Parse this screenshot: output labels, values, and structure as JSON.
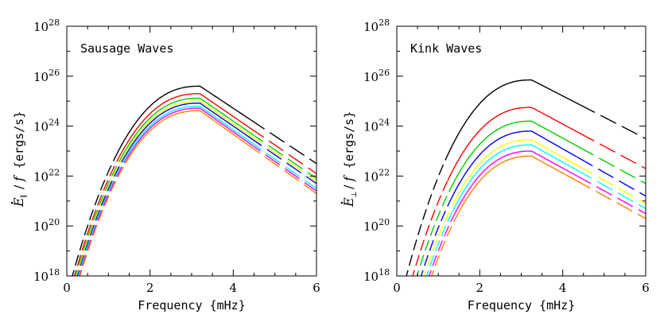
{
  "chart_data": [
    {
      "type": "line",
      "title": "Sausage Waves",
      "xlabel": "Frequency {mHz}",
      "ylabel": {
        "symbol": "E",
        "subscript": "∥",
        "slash": "/",
        "f": "f",
        "units": "{ergs/s}"
      },
      "xlim": [
        0,
        6
      ],
      "ylim_log10": [
        18,
        28
      ],
      "yscale": "log",
      "x_ticks": [
        {
          "v": 0,
          "label": "0"
        },
        {
          "v": 2,
          "label": "2"
        },
        {
          "v": 4,
          "label": "4"
        },
        {
          "v": 6,
          "label": "6"
        }
      ],
      "y_ticks": [
        {
          "e": 18,
          "base": "10",
          "exp": "18"
        },
        {
          "e": 20,
          "base": "10",
          "exp": "20"
        },
        {
          "e": 22,
          "base": "10",
          "exp": "22"
        },
        {
          "e": 24,
          "base": "10",
          "exp": "24"
        },
        {
          "e": 26,
          "base": "10",
          "exp": "26"
        },
        {
          "e": 28,
          "base": "10",
          "exp": "28"
        }
      ],
      "peak_x": 3.2,
      "solid_range_low": [
        1.2,
        4.4
      ],
      "series": [
        {
          "color": "#000000",
          "x_start": 0.1,
          "y_start_log10": 17.8,
          "y_peak_log10": 25.6,
          "y_end_log10": 22.5
        },
        {
          "color": "#ff0000",
          "x_start": 0.15,
          "y_start_log10": 17.8,
          "y_peak_log10": 25.3,
          "y_end_log10": 22.1
        },
        {
          "color": "#00cc00",
          "x_start": 0.18,
          "y_start_log10": 17.8,
          "y_peak_log10": 25.12,
          "y_end_log10": 21.9
        },
        {
          "color": "#ffff00",
          "x_start": 0.2,
          "y_start_log10": 17.8,
          "y_peak_log10": 25.0,
          "y_end_log10": 21.8
        },
        {
          "color": "#0000ff",
          "x_start": 0.22,
          "y_start_log10": 17.8,
          "y_peak_log10": 24.92,
          "y_end_log10": 21.7
        },
        {
          "color": "#00ffff",
          "x_start": 0.24,
          "y_start_log10": 17.8,
          "y_peak_log10": 24.8,
          "y_end_log10": 21.5
        },
        {
          "color": "#ff00ff",
          "x_start": 0.26,
          "y_start_log10": 17.8,
          "y_peak_log10": 24.72,
          "y_end_log10": 21.4
        },
        {
          "color": "#ff7f00",
          "x_start": 0.28,
          "y_start_log10": 17.8,
          "y_peak_log10": 24.62,
          "y_end_log10": 21.3
        }
      ]
    },
    {
      "type": "line",
      "title": "Kink Waves",
      "xlabel": "Frequency {mHz}",
      "ylabel": {
        "symbol": "E",
        "subscript": "⊥",
        "slash": "/",
        "f": "f",
        "units": "{ergs/s}"
      },
      "xlim": [
        0,
        6
      ],
      "ylim_log10": [
        18,
        28
      ],
      "yscale": "log",
      "x_ticks": [
        {
          "v": 0,
          "label": "0"
        },
        {
          "v": 2,
          "label": "2"
        },
        {
          "v": 4,
          "label": "4"
        },
        {
          "v": 6,
          "label": "6"
        }
      ],
      "y_ticks": [
        {
          "e": 18,
          "base": "10",
          "exp": "18"
        },
        {
          "e": 20,
          "base": "10",
          "exp": "20"
        },
        {
          "e": 22,
          "base": "10",
          "exp": "22"
        },
        {
          "e": 24,
          "base": "10",
          "exp": "24"
        },
        {
          "e": 26,
          "base": "10",
          "exp": "26"
        },
        {
          "e": 28,
          "base": "10",
          "exp": "28"
        }
      ],
      "peak_x": 3.25,
      "solid_range_low": [
        1.2,
        4.4
      ],
      "series": [
        {
          "color": "#000000",
          "x_start": 0.2,
          "y_start_log10": 17.8,
          "y_peak_log10": 25.85,
          "y_end_log10": 23.5
        },
        {
          "color": "#ff0000",
          "x_start": 0.35,
          "y_start_log10": 17.8,
          "y_peak_log10": 24.75,
          "y_end_log10": 22.3
        },
        {
          "color": "#00cc00",
          "x_start": 0.45,
          "y_start_log10": 17.8,
          "y_peak_log10": 24.2,
          "y_end_log10": 21.7
        },
        {
          "color": "#0000ff",
          "x_start": 0.55,
          "y_start_log10": 17.8,
          "y_peak_log10": 23.8,
          "y_end_log10": 21.2
        },
        {
          "color": "#ffff00",
          "x_start": 0.62,
          "y_start_log10": 17.8,
          "y_peak_log10": 23.45,
          "y_end_log10": 20.9
        },
        {
          "color": "#00ffff",
          "x_start": 0.68,
          "y_start_log10": 17.8,
          "y_peak_log10": 23.25,
          "y_end_log10": 20.7
        },
        {
          "color": "#ff00ff",
          "x_start": 0.74,
          "y_start_log10": 17.8,
          "y_peak_log10": 23.0,
          "y_end_log10": 20.5
        },
        {
          "color": "#ff7f00",
          "x_start": 0.8,
          "y_start_log10": 17.8,
          "y_peak_log10": 22.8,
          "y_end_log10": 20.3
        }
      ]
    }
  ]
}
